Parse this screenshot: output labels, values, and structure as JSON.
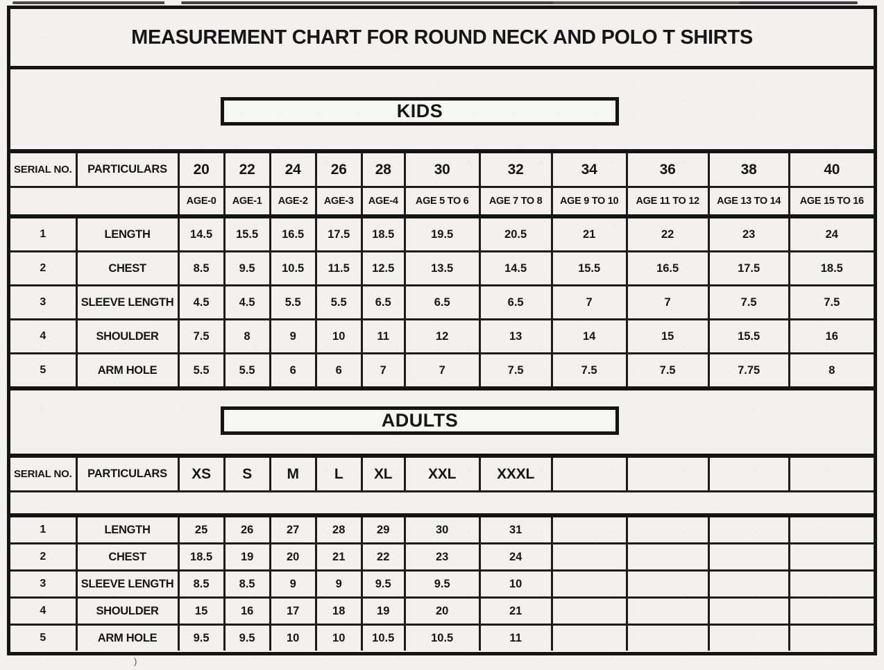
{
  "page_title": "MEASUREMENT CHART FOR ROUND NECK AND POLO T SHIRTS",
  "ink_color": "#141414",
  "paper_color": "#f2f1ee",
  "kids": {
    "banner": "KIDS",
    "serial_header": "SERIAL NO.",
    "particulars_header": "PARTICULARS",
    "size_headers": [
      "20",
      "22",
      "24",
      "26",
      "28",
      "30",
      "32",
      "34",
      "36",
      "38",
      "40"
    ],
    "age_labels": [
      "AGE-0",
      "AGE-1",
      "AGE-2",
      "AGE-3",
      "AGE-4",
      "AGE 5 TO 6",
      "AGE 7 TO 8",
      "AGE 9 TO 10",
      "AGE 11 TO 12",
      "AGE 13 TO 14",
      "AGE 15 TO 16"
    ],
    "rows": [
      {
        "serial": "1",
        "particular": "LENGTH",
        "values": [
          "14.5",
          "15.5",
          "16.5",
          "17.5",
          "18.5",
          "19.5",
          "20.5",
          "21",
          "22",
          "23",
          "24"
        ]
      },
      {
        "serial": "2",
        "particular": "CHEST",
        "values": [
          "8.5",
          "9.5",
          "10.5",
          "11.5",
          "12.5",
          "13.5",
          "14.5",
          "15.5",
          "16.5",
          "17.5",
          "18.5"
        ]
      },
      {
        "serial": "3",
        "particular": "SLEEVE LENGTH",
        "values": [
          "4.5",
          "4.5",
          "5.5",
          "5.5",
          "6.5",
          "6.5",
          "6.5",
          "7",
          "7",
          "7.5",
          "7.5"
        ]
      },
      {
        "serial": "4",
        "particular": "SHOULDER",
        "values": [
          "7.5",
          "8",
          "9",
          "10",
          "11",
          "12",
          "13",
          "14",
          "15",
          "15.5",
          "16"
        ]
      },
      {
        "serial": "5",
        "particular": "ARM HOLE",
        "values": [
          "5.5",
          "5.5",
          "6",
          "6",
          "7",
          "7",
          "7.5",
          "7.5",
          "7.5",
          "7.75",
          "8"
        ]
      }
    ]
  },
  "adults": {
    "banner": "ADULTS",
    "serial_header": "SERIAL NO.",
    "particulars_header": "PARTICULARS",
    "size_headers": [
      "XS",
      "S",
      "M",
      "L",
      "XL",
      "XXL",
      "XXXL",
      "",
      "",
      "",
      ""
    ],
    "rows": [
      {
        "serial": "1",
        "particular": "LENGTH",
        "values": [
          "25",
          "26",
          "27",
          "28",
          "29",
          "30",
          "31",
          "",
          "",
          "",
          ""
        ]
      },
      {
        "serial": "2",
        "particular": "CHEST",
        "values": [
          "18.5",
          "19",
          "20",
          "21",
          "22",
          "23",
          "24",
          "",
          "",
          "",
          ""
        ]
      },
      {
        "serial": "3",
        "particular": "SLEEVE LENGTH",
        "values": [
          "8.5",
          "8.5",
          "9",
          "9",
          "9.5",
          "9.5",
          "10",
          "",
          "",
          "",
          ""
        ]
      },
      {
        "serial": "4",
        "particular": "SHOULDER",
        "values": [
          "15",
          "16",
          "17",
          "18",
          "19",
          "20",
          "21",
          "",
          "",
          "",
          ""
        ]
      },
      {
        "serial": "5",
        "particular": "ARM HOLE",
        "values": [
          "9.5",
          "9.5",
          "10",
          "10",
          "10.5",
          "10.5",
          "11",
          "",
          "",
          "",
          ""
        ]
      }
    ]
  }
}
